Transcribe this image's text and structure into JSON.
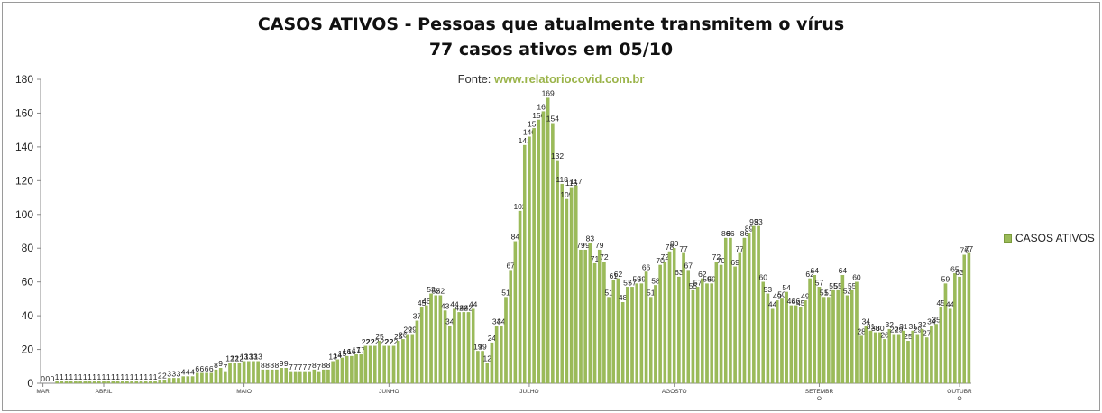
{
  "chart_data": {
    "type": "bar",
    "title": "CASOS ATIVOS - Pessoas que atualmente transmitem o vírus",
    "subtitle": "77 casos ativos em 05/10",
    "source_label": "Fonte:",
    "source_url": "www.relatoriocovid.com.br",
    "legend": "CASOS ATIVOS",
    "legend_position": "right",
    "ylim": [
      0,
      180
    ],
    "yticks": [
      0,
      20,
      40,
      60,
      80,
      100,
      120,
      140,
      160,
      180
    ],
    "grid": false,
    "bar_color": "#9bbb59",
    "month_labels": [
      {
        "label": "MAR",
        "index": 0
      },
      {
        "label": "ABRIL",
        "index": 13
      },
      {
        "label": "MAIO",
        "index": 43
      },
      {
        "label": "JUNHO",
        "index": 74
      },
      {
        "label": "JULHO",
        "index": 104
      },
      {
        "label": "AGOSTO",
        "index": 135
      },
      {
        "label": "SETEMBR O",
        "index": 166
      },
      {
        "label": "OUTUBR O",
        "index": 196
      }
    ],
    "values": [
      0,
      0,
      0,
      1,
      1,
      1,
      1,
      1,
      1,
      1,
      1,
      1,
      1,
      1,
      1,
      1,
      1,
      1,
      1,
      1,
      1,
      1,
      1,
      1,
      1,
      2,
      2,
      3,
      3,
      3,
      4,
      4,
      4,
      6,
      6,
      6,
      6,
      8,
      9,
      7,
      12,
      12,
      12,
      13,
      13,
      13,
      13,
      8,
      8,
      8,
      8,
      9,
      9,
      7,
      7,
      7,
      7,
      7,
      8,
      7,
      8,
      8,
      13,
      14,
      15,
      16,
      16,
      17,
      17,
      22,
      22,
      22,
      25,
      22,
      22,
      22,
      25,
      26,
      29,
      29,
      37,
      45,
      46,
      53,
      52,
      52,
      43,
      34,
      44,
      42,
      42,
      42,
      44,
      19,
      19,
      12,
      24,
      34,
      34,
      51,
      67,
      84,
      102,
      141,
      146,
      151,
      156,
      161,
      169,
      154,
      132,
      118,
      109,
      116,
      117,
      79,
      79,
      83,
      71,
      79,
      72,
      51,
      61,
      62,
      48,
      57,
      57,
      59,
      59,
      66,
      51,
      58,
      70,
      72,
      78,
      80,
      63,
      77,
      67,
      55,
      57,
      62,
      59,
      59,
      72,
      70,
      86,
      86,
      69,
      77,
      86,
      89,
      93,
      93,
      60,
      53,
      44,
      49,
      50,
      54,
      46,
      46,
      45,
      49,
      62,
      64,
      57,
      51,
      51,
      55,
      55,
      64,
      52,
      55,
      60,
      28,
      34,
      31,
      30,
      30,
      26,
      32,
      29,
      29,
      31,
      25,
      31,
      29,
      32,
      27,
      34,
      35,
      45,
      59,
      44,
      65,
      63,
      76,
      77
    ]
  }
}
